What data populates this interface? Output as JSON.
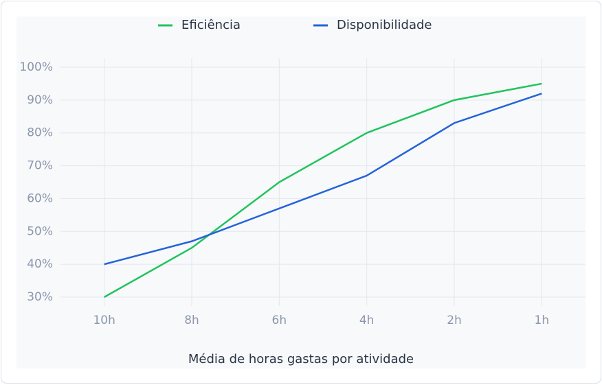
{
  "chart_data": {
    "type": "line",
    "x_label": "Média de horas gastas por atividade",
    "categories": [
      "10h",
      "8h",
      "6h",
      "4h",
      "2h",
      "1h"
    ],
    "series": [
      {
        "name": "Eficiência",
        "color": "#22c35e",
        "values": [
          30,
          45,
          65,
          80,
          90,
          95
        ]
      },
      {
        "name": "Disponibilidade",
        "color": "#2563d9",
        "values": [
          40,
          47,
          57,
          67,
          83,
          92
        ]
      }
    ],
    "ylim": [
      30,
      100
    ],
    "yticks": [
      {
        "value": 30,
        "label": "30%"
      },
      {
        "value": 40,
        "label": "40%"
      },
      {
        "value": 50,
        "label": "50%"
      },
      {
        "value": 60,
        "label": "60%"
      },
      {
        "value": 70,
        "label": "70%"
      },
      {
        "value": 80,
        "label": "80%"
      },
      {
        "value": 90,
        "label": "90%"
      },
      {
        "value": 100,
        "label": "100%"
      }
    ],
    "grid": true,
    "legend": "top"
  }
}
